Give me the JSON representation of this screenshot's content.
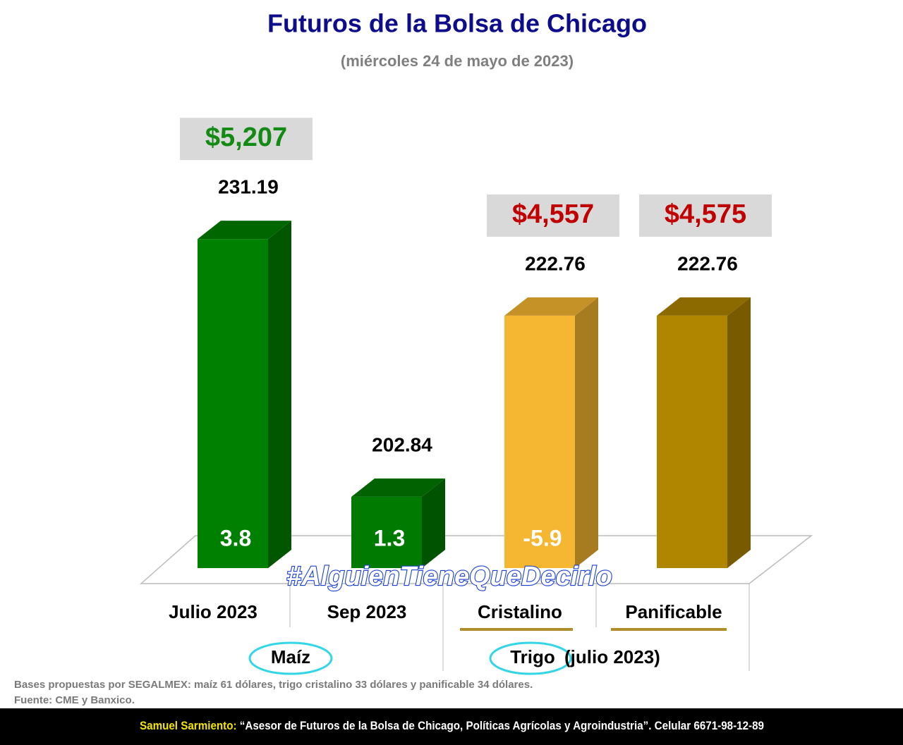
{
  "chart_data": {
    "type": "bar",
    "title": "Futuros de la Bolsa de Chicago",
    "subtitle": "(miércoles 24 de mayo de 2023)",
    "categories": [
      "Julio 2023",
      "Sep 2023",
      "Cristalino",
      "Panificable"
    ],
    "values": [
      231.19,
      202.84,
      222.76,
      222.76
    ],
    "colors": [
      "#008000",
      "#007a00",
      "#f5b731",
      "#b08500"
    ],
    "ylim": [
      195,
      235
    ],
    "prices": [
      "$5,207",
      null,
      "$4,557",
      "$4,575"
    ],
    "price_colors": [
      "#138a13",
      null,
      "#c00000",
      "#c00000"
    ],
    "changes": [
      3.8,
      1.3,
      -5.9,
      null
    ],
    "groups": [
      {
        "label": "Maíz"
      },
      {
        "label": "Trigo",
        "note": "(julio 2023)"
      }
    ],
    "hashtag": "#AlguienTieneQueDecirlo",
    "notes": [
      "Bases propuestas por SEGALMEX: maíz 61 dólares, trigo cristalino 33 dólares y panificable 34 dólares.",
      "Fuente: CME y Banxico."
    ],
    "footer": {
      "name": "Samuel Sarmiento:",
      "text": " “Asesor de Futuros de la Bolsa de Chicago, Políticas Agrícolas y Agroindustria”. Celular 6671-98-12-89"
    }
  }
}
